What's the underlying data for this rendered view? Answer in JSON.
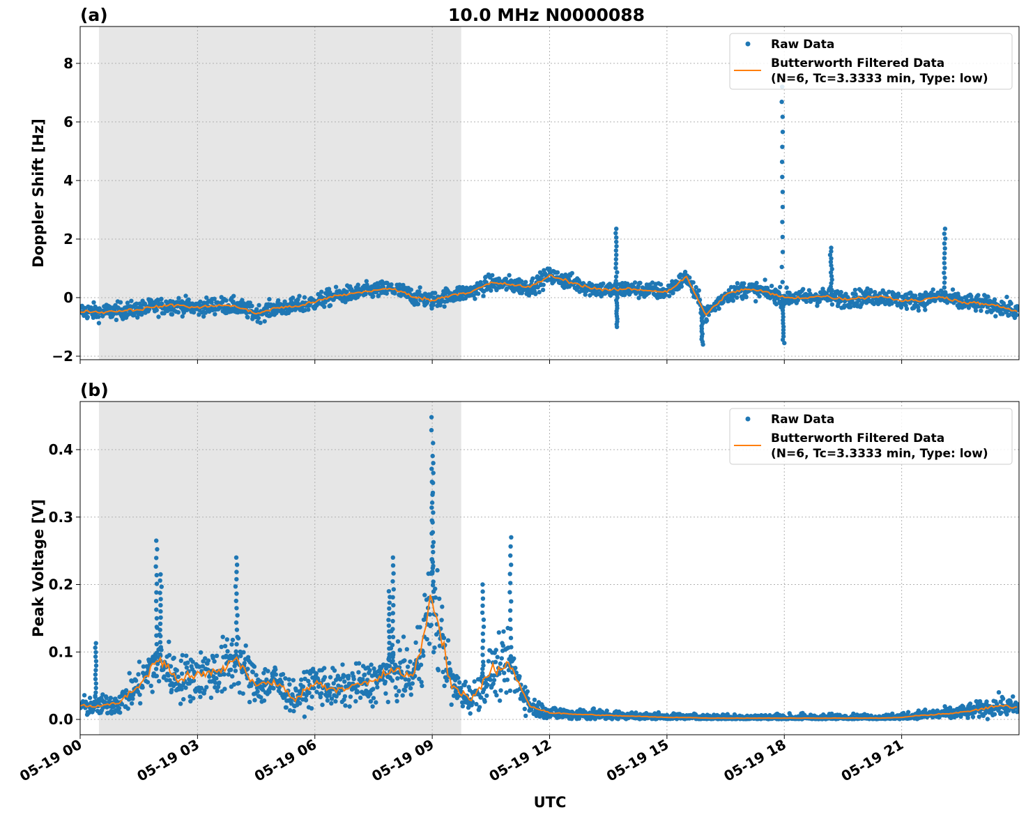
{
  "title": "10.0 MHz N0000088",
  "colors": {
    "raw": "#1f77b4",
    "filtered": "#ff7f0e",
    "shade": "#e6e6e6",
    "grid": "#b0b0b0"
  },
  "xlabel": "UTC",
  "x_tick_labels": [
    "05-19 00",
    "05-19 03",
    "05-19 06",
    "05-19 09",
    "05-19 12",
    "05-19 15",
    "05-19 18",
    "05-19 21"
  ],
  "legend": {
    "raw": "Raw Data",
    "filtered_line1": "Butterworth Filtered Data",
    "filtered_line2": "(N=6, Tc=3.3333 min, Type: low)",
    "placement": "top-right"
  },
  "chart_data": [
    {
      "type": "scatter+line",
      "panel_label": "(a)",
      "ylabel": "Doppler Shift [Hz]",
      "xlim_hours_utc": [
        0,
        24
      ],
      "ylim": [
        -2.12,
        9.26
      ],
      "y_ticks": [
        -2,
        0,
        2,
        4,
        6,
        8
      ],
      "y_tick_labels": [
        "−2",
        "0",
        "2",
        "4",
        "6",
        "8"
      ],
      "grid": true,
      "shaded_interval_hours_utc": [
        0.48,
        9.74
      ],
      "x_hours_utc": [
        0,
        0.5,
        1,
        1.5,
        2,
        2.5,
        3,
        3.5,
        4,
        4.5,
        5,
        5.5,
        6,
        6.5,
        7,
        7.5,
        8,
        8.5,
        9,
        9.5,
        10,
        10.5,
        11,
        11.5,
        12,
        12.5,
        13,
        13.5,
        14,
        14.5,
        15,
        15.5,
        16,
        16.5,
        17,
        17.5,
        18,
        18.5,
        19,
        19.5,
        20,
        20.5,
        21,
        21.5,
        22,
        22.5,
        23,
        23.5,
        24
      ],
      "filtered": [
        -0.45,
        -0.5,
        -0.45,
        -0.4,
        -0.3,
        -0.25,
        -0.35,
        -0.25,
        -0.3,
        -0.55,
        -0.35,
        -0.3,
        -0.15,
        0.05,
        0.15,
        0.25,
        0.3,
        0.05,
        -0.1,
        0.1,
        0.2,
        0.5,
        0.45,
        0.35,
        0.75,
        0.55,
        0.35,
        0.25,
        0.3,
        0.25,
        0.2,
        0.7,
        -0.6,
        0.1,
        0.3,
        0.2,
        0.0,
        0.0,
        0.05,
        -0.05,
        0.0,
        0.05,
        -0.1,
        -0.1,
        0.05,
        -0.15,
        -0.2,
        -0.3,
        -0.5
      ],
      "raw_spread": 0.35,
      "raw_spikes": [
        {
          "x": 13.7,
          "y": 2.35
        },
        {
          "x": 13.72,
          "y": -1.0
        },
        {
          "x": 17.95,
          "y": 7.2
        },
        {
          "x": 17.97,
          "y": -1.55
        },
        {
          "x": 19.2,
          "y": 1.7
        },
        {
          "x": 22.1,
          "y": 2.35
        },
        {
          "x": 15.9,
          "y": -1.6
        }
      ]
    },
    {
      "type": "scatter+line",
      "panel_label": "(b)",
      "ylabel": "Peak Voltage [V]",
      "xlim_hours_utc": [
        0,
        24
      ],
      "ylim": [
        -0.0227,
        0.4713
      ],
      "y_ticks": [
        0.0,
        0.1,
        0.2,
        0.3,
        0.4
      ],
      "y_tick_labels": [
        "0.0",
        "0.1",
        "0.2",
        "0.3",
        "0.4"
      ],
      "grid": true,
      "shaded_interval_hours_utc": [
        0.48,
        9.74
      ],
      "x_hours_utc": [
        0,
        0.5,
        1,
        1.5,
        2,
        2.5,
        3,
        3.5,
        4,
        4.5,
        5,
        5.5,
        6,
        6.5,
        7,
        7.5,
        8,
        8.5,
        9,
        9.5,
        10,
        10.5,
        11,
        11.5,
        12,
        12.5,
        13,
        13.5,
        14,
        14.5,
        15,
        15.5,
        16,
        16.5,
        17,
        17.5,
        18,
        18.5,
        19,
        19.5,
        20,
        20.5,
        21,
        21.5,
        22,
        22.5,
        23,
        23.5,
        24
      ],
      "filtered": [
        0.02,
        0.02,
        0.025,
        0.05,
        0.09,
        0.06,
        0.065,
        0.07,
        0.09,
        0.05,
        0.055,
        0.03,
        0.055,
        0.045,
        0.05,
        0.055,
        0.075,
        0.06,
        0.18,
        0.05,
        0.03,
        0.07,
        0.08,
        0.02,
        0.01,
        0.008,
        0.007,
        0.006,
        0.005,
        0.004,
        0.003,
        0.003,
        0.002,
        0.002,
        0.002,
        0.002,
        0.002,
        0.002,
        0.002,
        0.002,
        0.002,
        0.002,
        0.003,
        0.006,
        0.008,
        0.01,
        0.015,
        0.02,
        0.018
      ],
      "raw_spread_fraction": 0.6,
      "raw_spikes": [
        {
          "x": 0.4,
          "y": 0.113
        },
        {
          "x": 1.95,
          "y": 0.265
        },
        {
          "x": 2.05,
          "y": 0.215
        },
        {
          "x": 4.0,
          "y": 0.24
        },
        {
          "x": 8.0,
          "y": 0.24
        },
        {
          "x": 9.0,
          "y": 0.448
        },
        {
          "x": 9.02,
          "y": 0.38
        },
        {
          "x": 10.3,
          "y": 0.2
        },
        {
          "x": 11.0,
          "y": 0.27
        },
        {
          "x": 7.9,
          "y": 0.19
        }
      ]
    }
  ]
}
